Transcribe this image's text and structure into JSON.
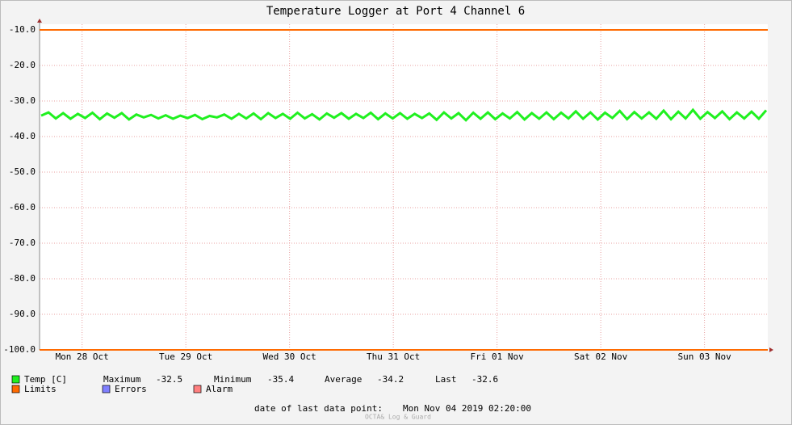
{
  "chart_data": {
    "type": "line",
    "title": "Temperature Logger at Port 4 Channel 6",
    "ylim": [
      -100,
      -8.4
    ],
    "yticks": [
      {
        "value": -10,
        "label": "-10.0"
      },
      {
        "value": -20,
        "label": "-20.0"
      },
      {
        "value": -30,
        "label": "-30.0"
      },
      {
        "value": -40,
        "label": "-40.0"
      },
      {
        "value": -50,
        "label": "-50.0"
      },
      {
        "value": -60,
        "label": "-60.0"
      },
      {
        "value": -70,
        "label": "-70.0"
      },
      {
        "value": -80,
        "label": "-80.0"
      },
      {
        "value": -90,
        "label": "-90.0"
      },
      {
        "value": -100,
        "label": "-100.0"
      }
    ],
    "xlim": [
      0.09,
      7.11
    ],
    "xticks": [
      {
        "value": 0.5,
        "label": "Mon 28 Oct"
      },
      {
        "value": 1.5,
        "label": "Tue 29 Oct"
      },
      {
        "value": 2.5,
        "label": "Wed 30 Oct"
      },
      {
        "value": 3.5,
        "label": "Thu 31 Oct"
      },
      {
        "value": 4.5,
        "label": "Fri 01 Nov"
      },
      {
        "value": 5.5,
        "label": "Sat 02 Nov"
      },
      {
        "value": 6.5,
        "label": "Sun 03 Nov"
      }
    ],
    "grid": true,
    "series": [
      {
        "name": "Temp [C]",
        "color": "#20f020",
        "values": [
          -34.1,
          -33.2,
          -34.9,
          -33.4,
          -35.0,
          -33.6,
          -34.8,
          -33.3,
          -35.1,
          -33.5,
          -34.7,
          -33.4,
          -35.2,
          -33.8,
          -34.6,
          -33.9,
          -34.9,
          -34.0,
          -35.0,
          -34.1,
          -34.8,
          -33.9,
          -35.1,
          -34.2,
          -34.6,
          -33.8,
          -35.0,
          -33.6,
          -34.9,
          -33.5,
          -35.1,
          -33.4,
          -34.8,
          -33.6,
          -35.0,
          -33.3,
          -34.9,
          -33.7,
          -35.2,
          -33.5,
          -34.7,
          -33.4,
          -35.0,
          -33.6,
          -34.8,
          -33.3,
          -35.1,
          -33.5,
          -34.9,
          -33.4,
          -35.0,
          -33.6,
          -34.8,
          -33.5,
          -35.3,
          -33.2,
          -34.9,
          -33.4,
          -35.4,
          -33.3,
          -35.0,
          -33.2,
          -35.1,
          -33.5,
          -34.9,
          -33.1,
          -35.2,
          -33.4,
          -35.0,
          -33.2,
          -35.1,
          -33.3,
          -34.9,
          -32.9,
          -35.0,
          -33.2,
          -35.2,
          -33.3,
          -34.8,
          -32.8,
          -35.1,
          -33.1,
          -34.9,
          -33.2,
          -35.0,
          -32.7,
          -35.1,
          -33.0,
          -34.9,
          -32.5,
          -35.0,
          -33.1,
          -34.8,
          -32.9,
          -35.1,
          -33.2,
          -34.9,
          -33.0,
          -35.0,
          -32.6
        ]
      }
    ],
    "limits": {
      "name": "Limits",
      "color": "#ff6a00",
      "values": [
        -10,
        -100
      ]
    },
    "other_legend": [
      {
        "name": "Errors",
        "color": "#7f7fff"
      },
      {
        "name": "Alarm",
        "color": "#ff7f7f"
      }
    ],
    "stats": [
      {
        "label": "Maximum",
        "value": -32.5
      },
      {
        "label": "Minimum",
        "value": -35.4
      },
      {
        "label": "Average",
        "value": -34.2
      },
      {
        "label": "Last",
        "value": -32.6
      }
    ],
    "footer_label": "date of last data point:",
    "footer_value": "Mon Nov 04 2019 02:20:00",
    "credit": "OCTA& Log & Guard"
  }
}
